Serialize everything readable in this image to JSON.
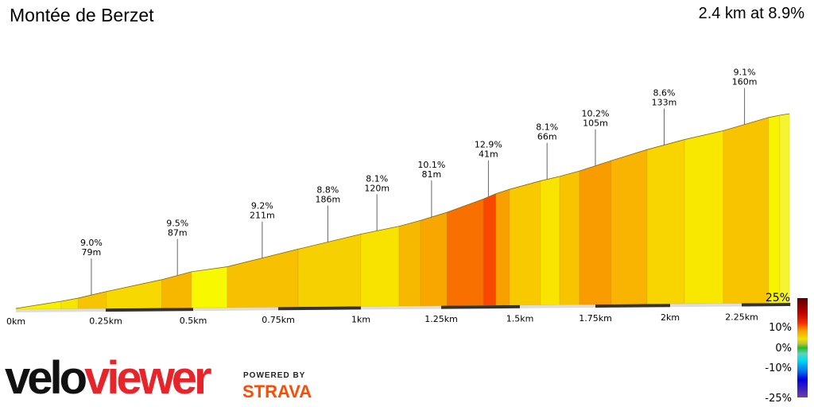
{
  "title": "Montée de Berzet",
  "summary": "2.4 km at 8.9%",
  "chart_data": {
    "type": "area",
    "xlabel": "",
    "ylabel": "",
    "x_ticks": [
      "0km",
      "0.25km",
      "0.5km",
      "0.75km",
      "1km",
      "1.25km",
      "1.5km",
      "1.75km",
      "2km",
      "2.25km"
    ],
    "x_tick_values": [
      0,
      0.25,
      0.5,
      0.75,
      1,
      1.25,
      1.5,
      1.75,
      2,
      2.25
    ],
    "xlim": [
      0,
      2.42
    ],
    "segments": [
      {
        "start": 0,
        "end": 0.126,
        "gradient": 6,
        "color": "#f7f000"
      },
      {
        "start": 0.126,
        "end": 0.173,
        "gradient": 7,
        "color": "#f5e600"
      },
      {
        "start": 0.173,
        "end": 0.252,
        "gradient": 9,
        "color": "#f7c400"
      },
      {
        "start": 0.252,
        "end": 0.41,
        "gradient": 8,
        "color": "#f7d800"
      },
      {
        "start": 0.41,
        "end": 0.495,
        "gradient": 10,
        "color": "#f7b600"
      },
      {
        "start": 0.495,
        "end": 0.6,
        "gradient": 5,
        "color": "#f8f800"
      },
      {
        "start": 0.6,
        "end": 0.81,
        "gradient": 9,
        "color": "#f7c000"
      },
      {
        "start": 0.81,
        "end": 1.0,
        "gradient": 8.5,
        "color": "#f7d000"
      },
      {
        "start": 1.0,
        "end": 1.119,
        "gradient": 7,
        "color": "#f7e200"
      },
      {
        "start": 1.119,
        "end": 1.186,
        "gradient": 9.5,
        "color": "#f7b800"
      },
      {
        "start": 1.186,
        "end": 1.268,
        "gradient": 10.5,
        "color": "#f8a600"
      },
      {
        "start": 1.268,
        "end": 1.384,
        "gradient": 12.5,
        "color": "#f87000"
      },
      {
        "start": 1.384,
        "end": 1.424,
        "gradient": 14.5,
        "color": "#f84800"
      },
      {
        "start": 1.424,
        "end": 1.467,
        "gradient": 11,
        "color": "#f8a000"
      },
      {
        "start": 1.467,
        "end": 1.568,
        "gradient": 9,
        "color": "#f8c800"
      },
      {
        "start": 1.568,
        "end": 1.632,
        "gradient": 7.5,
        "color": "#f8e400"
      },
      {
        "start": 1.632,
        "end": 1.697,
        "gradient": 9,
        "color": "#f8c400"
      },
      {
        "start": 1.697,
        "end": 1.803,
        "gradient": 10.5,
        "color": "#f89c00"
      },
      {
        "start": 1.803,
        "end": 1.923,
        "gradient": 10,
        "color": "#f8b400"
      },
      {
        "start": 1.923,
        "end": 2.05,
        "gradient": 8.5,
        "color": "#f8d400"
      },
      {
        "start": 2.05,
        "end": 2.186,
        "gradient": 7,
        "color": "#f8e800"
      },
      {
        "start": 2.186,
        "end": 2.344,
        "gradient": 9,
        "color": "#f8c400"
      },
      {
        "start": 2.344,
        "end": 2.383,
        "gradient": 6,
        "color": "#f8f400"
      },
      {
        "start": 2.383,
        "end": 2.417,
        "gradient": 5,
        "color": "#f4f430"
      }
    ],
    "annotations": [
      {
        "x": 0.21,
        "gradient": "9.0%",
        "length": "79m"
      },
      {
        "x": 0.455,
        "gradient": "9.5%",
        "length": "87m"
      },
      {
        "x": 0.703,
        "gradient": "9.2%",
        "length": "211m"
      },
      {
        "x": 0.9,
        "gradient": "8.8%",
        "length": "186m"
      },
      {
        "x": 1.05,
        "gradient": "8.1%",
        "length": "120m"
      },
      {
        "x": 1.22,
        "gradient": "10.1%",
        "length": "81m"
      },
      {
        "x": 1.4,
        "gradient": "12.9%",
        "length": "41m"
      },
      {
        "x": 1.59,
        "gradient": "8.1%",
        "length": "66m"
      },
      {
        "x": 1.75,
        "gradient": "10.2%",
        "length": "105m"
      },
      {
        "x": 1.98,
        "gradient": "8.6%",
        "length": "133m"
      },
      {
        "x": 2.26,
        "gradient": "9.1%",
        "length": "160m"
      }
    ],
    "legend": {
      "labels": [
        "25%",
        "10%",
        "0%",
        "-10%",
        "-25%"
      ],
      "placement": "bottom-right"
    }
  },
  "branding": {
    "logo_a": "velo",
    "logo_b": "viewer",
    "powered_by": "POWERED BY",
    "strava": "STRAVA"
  }
}
